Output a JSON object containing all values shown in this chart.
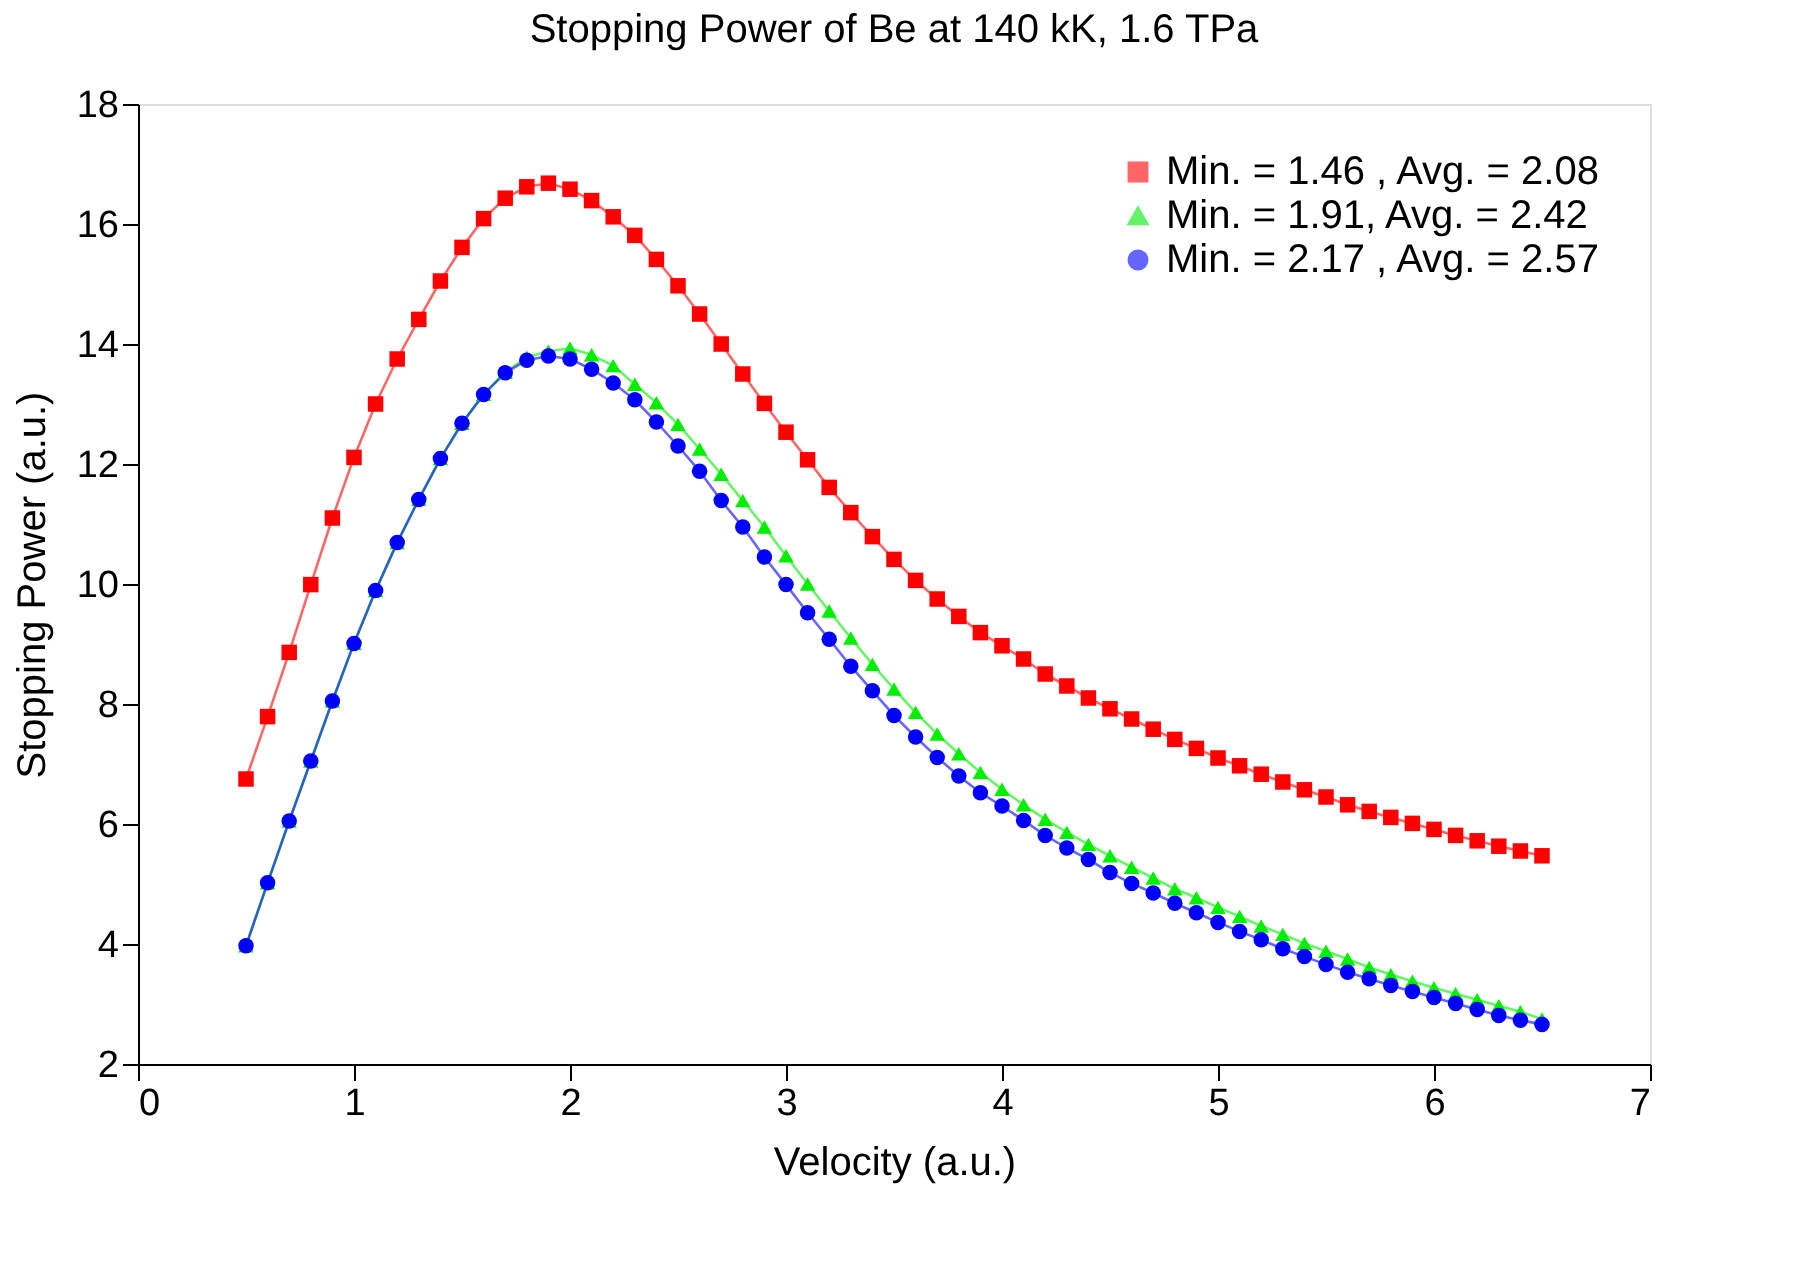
{
  "chart_data": {
    "type": "line",
    "title": "Stopping Power of Be at 140 kK, 1.6 TPa",
    "xlabel": "Velocity (a.u.)",
    "ylabel": "Stopping Power (a.u.)",
    "x": [
      0.5,
      0.6,
      0.7,
      0.8,
      0.9,
      1.0,
      1.1,
      1.2,
      1.3,
      1.4,
      1.5,
      1.6,
      1.7,
      1.8,
      1.9,
      2.0,
      2.1,
      2.2,
      2.3,
      2.4,
      2.5,
      2.6,
      2.7,
      2.8,
      2.9,
      3.0,
      3.1,
      3.2,
      3.3,
      3.4,
      3.5,
      3.6,
      3.7,
      3.8,
      3.9,
      4.0,
      4.1,
      4.2,
      4.3,
      4.4,
      4.5,
      4.6,
      4.7,
      4.8,
      4.9,
      5.0,
      5.1,
      5.2,
      5.3,
      5.4,
      5.5,
      5.6,
      5.7,
      5.8,
      5.9,
      6.0,
      6.1,
      6.2,
      6.3,
      6.4,
      6.5
    ],
    "series": [
      {
        "name": "Min. = 1.46 , Avg. = 2.08",
        "color": "#ff0000",
        "marker": "square",
        "values": [
          6.75,
          7.79,
          8.86,
          9.99,
          11.1,
          12.11,
          13.0,
          13.75,
          14.41,
          15.05,
          15.61,
          16.09,
          16.43,
          16.62,
          16.68,
          16.58,
          16.39,
          16.12,
          15.81,
          15.41,
          14.97,
          14.5,
          14.0,
          13.5,
          13.01,
          12.53,
          12.07,
          11.61,
          11.19,
          10.79,
          10.41,
          10.06,
          9.75,
          9.46,
          9.19,
          8.97,
          8.75,
          8.5,
          8.3,
          8.1,
          7.92,
          7.75,
          7.58,
          7.41,
          7.26,
          7.1,
          6.97,
          6.83,
          6.7,
          6.57,
          6.45,
          6.32,
          6.21,
          6.11,
          6.01,
          5.91,
          5.81,
          5.72,
          5.63,
          5.55,
          5.47
        ]
      },
      {
        "name": "Min. = 1.91, Avg. = 2.42",
        "color": "#00ee00",
        "marker": "triangle",
        "values": [
          3.97,
          5.02,
          6.05,
          7.05,
          8.05,
          9.01,
          9.89,
          10.69,
          11.41,
          12.09,
          12.68,
          13.16,
          13.53,
          13.78,
          13.88,
          13.93,
          13.82,
          13.64,
          13.33,
          13.02,
          12.66,
          12.25,
          11.83,
          11.39,
          10.95,
          10.47,
          10.0,
          9.55,
          9.1,
          8.66,
          8.25,
          7.86,
          7.5,
          7.17,
          6.86,
          6.58,
          6.32,
          6.08,
          5.86,
          5.66,
          5.47,
          5.28,
          5.1,
          4.92,
          4.77,
          4.61,
          4.46,
          4.3,
          4.16,
          4.01,
          3.88,
          3.75,
          3.61,
          3.49,
          3.38,
          3.27,
          3.17,
          3.07,
          2.97,
          2.87,
          2.75
        ]
      },
      {
        "name": "Min. = 2.17 , Avg. = 2.57",
        "color": "#0000ff",
        "marker": "circle",
        "values": [
          3.97,
          5.02,
          6.05,
          7.05,
          8.05,
          9.01,
          9.89,
          10.69,
          11.41,
          12.09,
          12.68,
          13.16,
          13.52,
          13.73,
          13.8,
          13.75,
          13.58,
          13.35,
          13.07,
          12.7,
          12.3,
          11.88,
          11.39,
          10.95,
          10.45,
          9.99,
          9.52,
          9.08,
          8.63,
          8.22,
          7.81,
          7.45,
          7.11,
          6.8,
          6.52,
          6.3,
          6.06,
          5.81,
          5.6,
          5.41,
          5.19,
          5.01,
          4.85,
          4.68,
          4.52,
          4.36,
          4.21,
          4.07,
          3.92,
          3.79,
          3.66,
          3.53,
          3.42,
          3.31,
          3.21,
          3.11,
          3.01,
          2.91,
          2.81,
          2.73,
          2.66
        ]
      }
    ],
    "xlim": [
      0,
      7
    ],
    "xticks": [
      0,
      1,
      2,
      3,
      4,
      5,
      6,
      7
    ],
    "ylim": [
      2,
      18
    ],
    "yticks": [
      2,
      4,
      6,
      8,
      10,
      12,
      14,
      16,
      18
    ],
    "legend": "top right",
    "grid": false
  }
}
